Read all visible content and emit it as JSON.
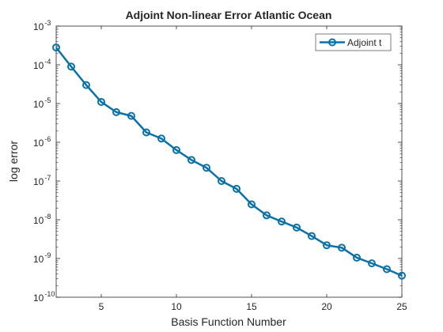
{
  "chart_data": {
    "type": "line",
    "title": "Adjoint Non-linear Error Atlantic Ocean",
    "xlabel": "Basis Function Number",
    "ylabel": "log error",
    "xlim": [
      2,
      25
    ],
    "ylim": [
      1e-10,
      0.001
    ],
    "yscale": "log",
    "grid": false,
    "legend_position": "top-right",
    "x_ticks": [
      5,
      10,
      15,
      20,
      25
    ],
    "y_ticks": [
      {
        "value": 1e-10,
        "base": "10",
        "exp": "-10"
      },
      {
        "value": 1e-09,
        "base": "10",
        "exp": "-9"
      },
      {
        "value": 1e-08,
        "base": "10",
        "exp": "-8"
      },
      {
        "value": 1e-07,
        "base": "10",
        "exp": "-7"
      },
      {
        "value": 1e-06,
        "base": "10",
        "exp": "-6"
      },
      {
        "value": 1e-05,
        "base": "10",
        "exp": "-5"
      },
      {
        "value": 0.0001,
        "base": "10",
        "exp": "-4"
      },
      {
        "value": 0.001,
        "base": "10",
        "exp": "-3"
      }
    ],
    "x": [
      2,
      3,
      4,
      5,
      6,
      7,
      8,
      9,
      10,
      11,
      12,
      13,
      14,
      15,
      16,
      17,
      18,
      19,
      20,
      21,
      22,
      23,
      24,
      25
    ],
    "series": [
      {
        "name": "Adjoint t",
        "color": "#0a72a8",
        "values": [
          0.00028,
          9e-05,
          3e-05,
          1.1e-05,
          6e-06,
          4.8e-06,
          1.8e-06,
          1.25e-06,
          6.3e-07,
          3.5e-07,
          2.2e-07,
          1e-07,
          6.3e-08,
          2.5e-08,
          1.3e-08,
          9e-09,
          6.3e-09,
          3.8e-09,
          2.2e-09,
          1.9e-09,
          1.05e-09,
          7.5e-10,
          5.3e-10,
          3.6e-10
        ]
      }
    ]
  }
}
